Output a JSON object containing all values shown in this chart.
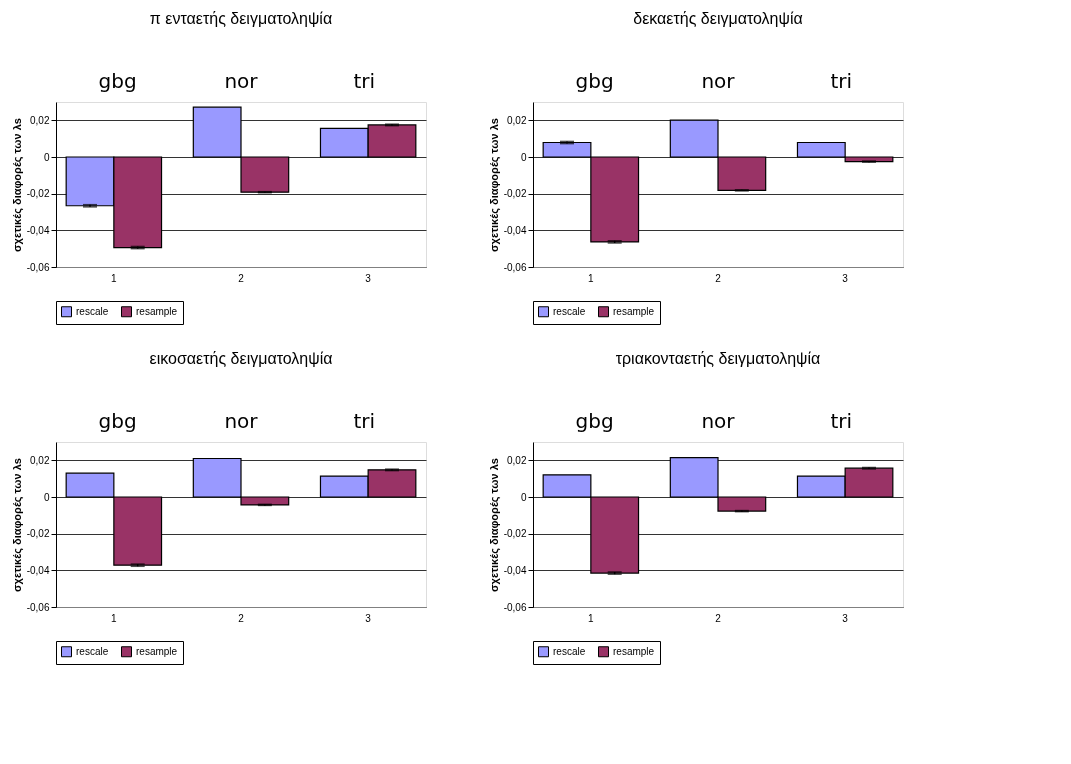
{
  "chart_data": [
    {
      "type": "bar",
      "title": "π ενταετής δειγματοληψία",
      "ylabel": "σχετικές διαφορές των λs",
      "categories": [
        "1",
        "2",
        "3"
      ],
      "annotations": [
        "gbg",
        "nor",
        "tri"
      ],
      "series": [
        {
          "name": "rescale",
          "color": "#9999ff",
          "values": [
            -0.0266,
            0.0272,
            0.0156
          ],
          "errors": [
            0.0006,
            null,
            null
          ]
        },
        {
          "name": "resample",
          "color": "#993366",
          "values": [
            -0.0494,
            -0.0192,
            0.0175
          ],
          "errors": [
            0.0006,
            0.0003,
            0.0004
          ]
        }
      ],
      "ylim": [
        -0.06,
        0.03
      ],
      "yticks": [
        {
          "value": 0.02,
          "label": "0,02"
        },
        0,
        {
          "value": -0.02,
          "label": "-0,02"
        },
        {
          "value": -0.04,
          "label": "-0,04"
        },
        {
          "value": -0.06,
          "label": "-0,06"
        }
      ],
      "grid": "y",
      "legend": "bottom"
    },
    {
      "type": "bar",
      "title": "δεκαετής δειγματοληψία",
      "ylabel": "σχετικές διαφορές των λs",
      "categories": [
        "1",
        "2",
        "3"
      ],
      "annotations": [
        "gbg",
        "nor",
        "tri"
      ],
      "series": [
        {
          "name": "rescale",
          "color": "#9999ff",
          "values": [
            0.0079,
            0.0201,
            0.0079
          ],
          "errors": [
            0.0006,
            null,
            null
          ]
        },
        {
          "name": "resample",
          "color": "#993366",
          "values": [
            -0.0463,
            -0.0182,
            -0.0025
          ],
          "errors": [
            0.0006,
            0.0003,
            0.0003
          ]
        }
      ],
      "ylim": [
        -0.06,
        0.03
      ],
      "yticks": [
        {
          "value": 0.02,
          "label": "0,02"
        },
        0,
        {
          "value": -0.02,
          "label": "-0,02"
        },
        {
          "value": -0.04,
          "label": "-0,04"
        },
        {
          "value": -0.06,
          "label": "-0,06"
        }
      ],
      "grid": "y",
      "legend": "bottom"
    },
    {
      "type": "bar",
      "title": "εικοσαετής δειγματοληψία",
      "ylabel": "σχετικές διαφορές των λs",
      "categories": [
        "1",
        "2",
        "3"
      ],
      "annotations": [
        "gbg",
        "nor",
        "tri"
      ],
      "series": [
        {
          "name": "rescale",
          "color": "#9999ff",
          "values": [
            0.013,
            0.021,
            0.0114
          ],
          "errors": [
            null,
            null,
            null
          ]
        },
        {
          "name": "resample",
          "color": "#993366",
          "values": [
            -0.0372,
            -0.0043,
            0.0148
          ],
          "errors": [
            0.0006,
            0.0003,
            0.0004
          ]
        }
      ],
      "ylim": [
        -0.06,
        0.03
      ],
      "yticks": [
        {
          "value": 0.02,
          "label": "0,02"
        },
        0,
        {
          "value": -0.02,
          "label": "-0,02"
        },
        {
          "value": -0.04,
          "label": "-0,04"
        },
        {
          "value": -0.06,
          "label": "-0,06"
        }
      ],
      "grid": "y",
      "legend": "bottom"
    },
    {
      "type": "bar",
      "title": "τριακονταετής δειγματοληψία",
      "ylabel": "σχετικές διαφορές των λs",
      "categories": [
        "1",
        "2",
        "3"
      ],
      "annotations": [
        "gbg",
        "nor",
        "tri"
      ],
      "series": [
        {
          "name": "rescale",
          "color": "#9999ff",
          "values": [
            0.0121,
            0.0215,
            0.0114
          ],
          "errors": [
            null,
            null,
            null
          ]
        },
        {
          "name": "resample",
          "color": "#993366",
          "values": [
            -0.0415,
            -0.0077,
            0.0157
          ],
          "errors": [
            0.0006,
            0.0003,
            0.0004
          ]
        }
      ],
      "ylim": [
        -0.06,
        0.03
      ],
      "yticks": [
        {
          "value": 0.02,
          "label": "0,02"
        },
        0,
        {
          "value": -0.02,
          "label": "-0,02"
        },
        {
          "value": -0.04,
          "label": "-0,04"
        },
        {
          "value": -0.06,
          "label": "-0,06"
        }
      ],
      "grid": "y",
      "legend": "bottom"
    }
  ]
}
